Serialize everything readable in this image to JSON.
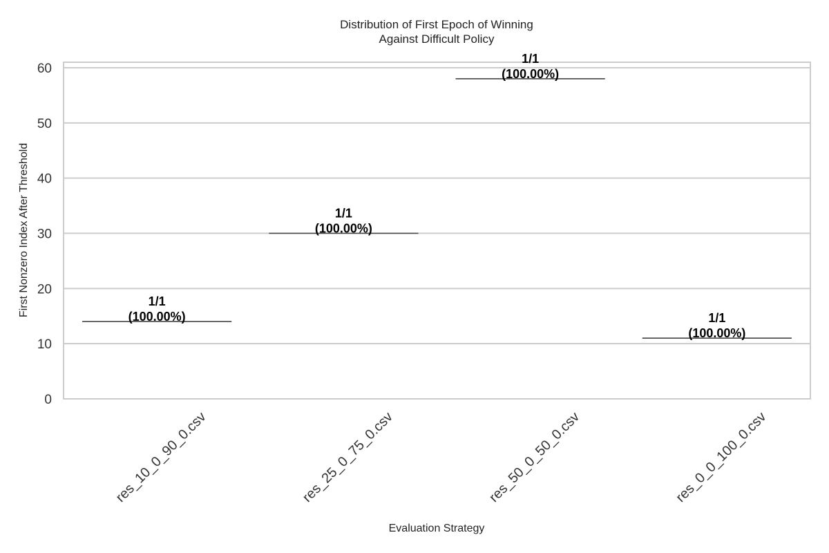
{
  "chart_data": {
    "type": "box",
    "title": [
      "Distribution of First Epoch of Winning",
      "Against Difficult Policy"
    ],
    "xlabel": "Evaluation Strategy",
    "ylabel": "First Nonzero Index After Threshold",
    "categories": [
      "res_10_0_90_0.csv",
      "res_25_0_75_0.csv",
      "res_50_0_50_0.csv",
      "res_0_0_100_0.csv"
    ],
    "values": [
      14,
      30,
      58,
      11
    ],
    "annotations": [
      [
        "1/1",
        "(100.00%)"
      ],
      [
        "1/1",
        "(100.00%)"
      ],
      [
        "1/1",
        "(100.00%)"
      ],
      [
        "1/1",
        "(100.00%)"
      ]
    ],
    "ylim": [
      0,
      61
    ],
    "yticks": [
      0,
      10,
      20,
      30,
      40,
      50,
      60
    ],
    "grid": true,
    "colors": {
      "grid": "#cccccc",
      "box_line": "#444444",
      "frame": "#cccccc"
    }
  }
}
